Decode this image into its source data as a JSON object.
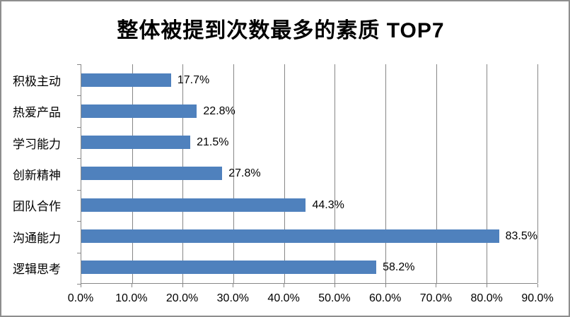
{
  "window": {
    "background": "#ffffff",
    "border_color": "#8e8e8e"
  },
  "chart_data": {
    "type": "bar",
    "orientation": "horizontal",
    "title": "整体被提到次数最多的素质 TOP7",
    "categories": [
      "积极主动",
      "热爱产品",
      "学习能力",
      "创新精神",
      "团队合作",
      "沟通能力",
      "逻辑思考"
    ],
    "values": [
      17.7,
      22.8,
      21.5,
      27.8,
      44.3,
      83.5,
      58.2
    ],
    "data_labels": [
      "17.7%",
      "22.8%",
      "21.5%",
      "27.8%",
      "44.3%",
      "83.5%",
      "58.2%"
    ],
    "x_ticks": [
      "0.0%",
      "10.0%",
      "20.0%",
      "30.0%",
      "40.0%",
      "50.0%",
      "60.0%",
      "70.0%",
      "80.0%",
      "90.0%"
    ],
    "x_tick_values": [
      0,
      10,
      20,
      30,
      40,
      50,
      60,
      70,
      80,
      90
    ],
    "xlim": [
      0,
      90
    ],
    "xlabel": "",
    "ylabel": "",
    "grid": true,
    "legend": "none",
    "bar_color": "#4f81bd",
    "gridline_color": "#878787",
    "text_color": "#000000"
  }
}
